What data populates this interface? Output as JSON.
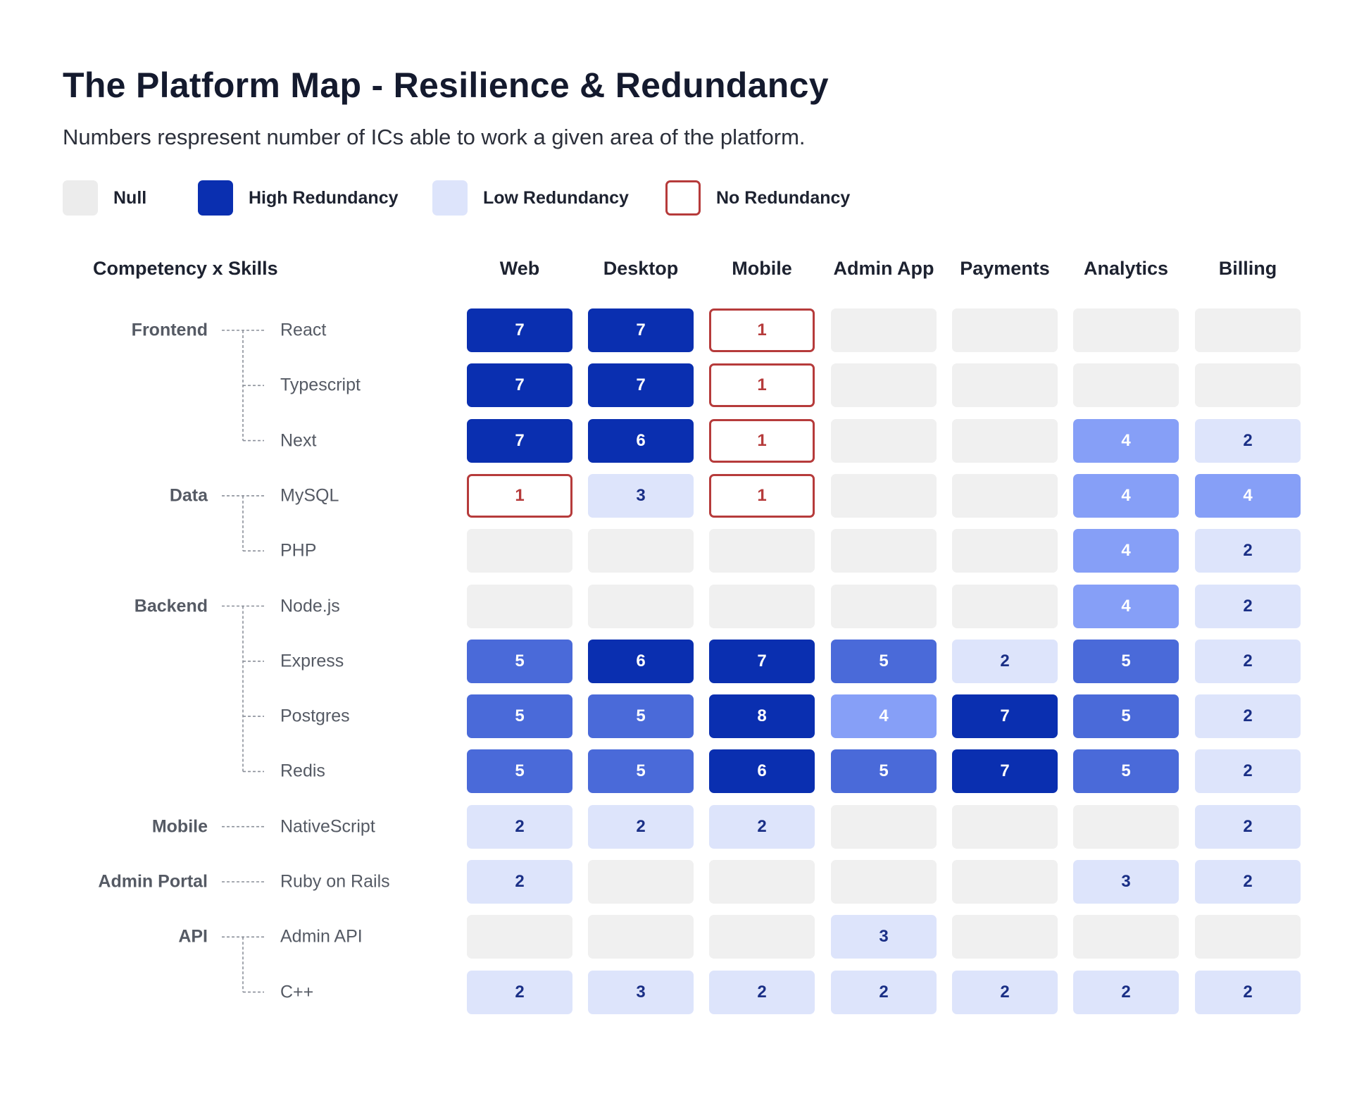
{
  "title": "The Platform Map - Resilience & Redundancy",
  "subtitle": "Numbers respresent number of ICs able to work a given area of the platform.",
  "legend": [
    {
      "label": "Null",
      "color": "#ececec",
      "style": "fill"
    },
    {
      "label": "High Redundancy",
      "color": "#0a2fb0",
      "style": "fill"
    },
    {
      "label": "Low Redundancy",
      "color": "#dde4fb",
      "style": "fill"
    },
    {
      "label": "No Redundancy",
      "color": "#b63b3b",
      "style": "outline"
    }
  ],
  "colors": {
    "null": "#f0f0f0",
    "very_high": "#0a2fb0",
    "high": "#4a6ad9",
    "medium": "#869ff7",
    "low": "#dde4fb",
    "none_border": "#b63b3b",
    "text_light": "#ffffff",
    "text_dark": "#1a2f86",
    "text_none": "#b63b3b"
  },
  "chart_data": {
    "type": "heatmap",
    "title": "The Platform Map - Resilience & Redundancy",
    "subtitle": "Numbers respresent number of ICs able to work a given area of the platform.",
    "corner_label": "Competency x Skills",
    "columns": [
      "Web",
      "Desktop",
      "Mobile",
      "Admin App",
      "Payments",
      "Analytics",
      "Billing"
    ],
    "groups": [
      {
        "name": "Frontend",
        "skills": [
          "React",
          "Typescript",
          "Next"
        ]
      },
      {
        "name": "Data",
        "skills": [
          "MySQL",
          "PHP"
        ]
      },
      {
        "name": "Backend",
        "skills": [
          "Node.js",
          "Express",
          "Postgres",
          "Redis"
        ]
      },
      {
        "name": "Mobile",
        "skills": [
          "NativeScript"
        ]
      },
      {
        "name": "Admin Portal",
        "skills": [
          "Ruby on Rails"
        ]
      },
      {
        "name": "API",
        "skills": [
          "Admin API",
          "C++"
        ]
      }
    ],
    "rows": [
      {
        "skill": "React",
        "values": [
          7,
          7,
          1,
          null,
          null,
          null,
          null
        ]
      },
      {
        "skill": "Typescript",
        "values": [
          7,
          7,
          1,
          null,
          null,
          null,
          null
        ]
      },
      {
        "skill": "Next",
        "values": [
          7,
          6,
          1,
          null,
          null,
          4,
          2
        ]
      },
      {
        "skill": "MySQL",
        "values": [
          1,
          3,
          1,
          null,
          null,
          4,
          4
        ]
      },
      {
        "skill": "PHP",
        "values": [
          null,
          null,
          null,
          null,
          null,
          4,
          2
        ]
      },
      {
        "skill": "Node.js",
        "values": [
          null,
          null,
          null,
          null,
          null,
          4,
          2
        ]
      },
      {
        "skill": "Express",
        "values": [
          5,
          6,
          7,
          5,
          2,
          5,
          2
        ]
      },
      {
        "skill": "Postgres",
        "values": [
          5,
          5,
          8,
          4,
          7,
          5,
          2
        ]
      },
      {
        "skill": "Redis",
        "values": [
          5,
          5,
          6,
          5,
          7,
          5,
          2
        ]
      },
      {
        "skill": "NativeScript",
        "values": [
          2,
          2,
          2,
          null,
          null,
          null,
          2
        ]
      },
      {
        "skill": "Ruby on Rails",
        "values": [
          2,
          null,
          null,
          null,
          null,
          3,
          2
        ]
      },
      {
        "skill": "Admin API",
        "values": [
          null,
          null,
          null,
          3,
          null,
          null,
          null
        ]
      },
      {
        "skill": "C++",
        "values": [
          2,
          3,
          2,
          2,
          2,
          2,
          2
        ]
      }
    ]
  }
}
